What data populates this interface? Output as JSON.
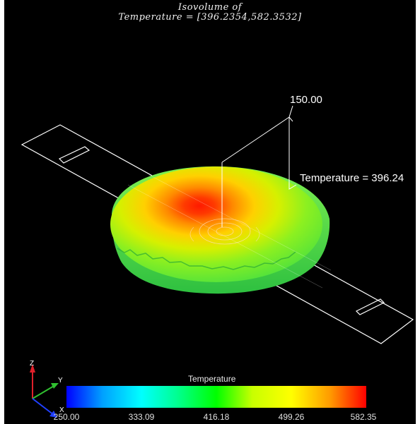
{
  "title": {
    "line1": "Isovolume of",
    "line2": "Temperature = [396.2354,582.3532]"
  },
  "annotations": {
    "value_label": "150.00",
    "temperature_label": "Temperature = 396.24"
  },
  "colorbar": {
    "title": "Temperature",
    "ticks": [
      "250.00",
      "333.09",
      "416.18",
      "499.26",
      "582.35"
    ],
    "colors": [
      "#0000ff",
      "#00ffff",
      "#00ff00",
      "#ffff00",
      "#ff0000"
    ]
  },
  "axes": {
    "z": "Z",
    "y": "Y",
    "x": "X",
    "colors": {
      "z": "#e0202a",
      "y": "#30c030",
      "x": "#2040ff"
    }
  },
  "colors": {
    "background": "#000000",
    "wireframe": "#ffffff"
  }
}
